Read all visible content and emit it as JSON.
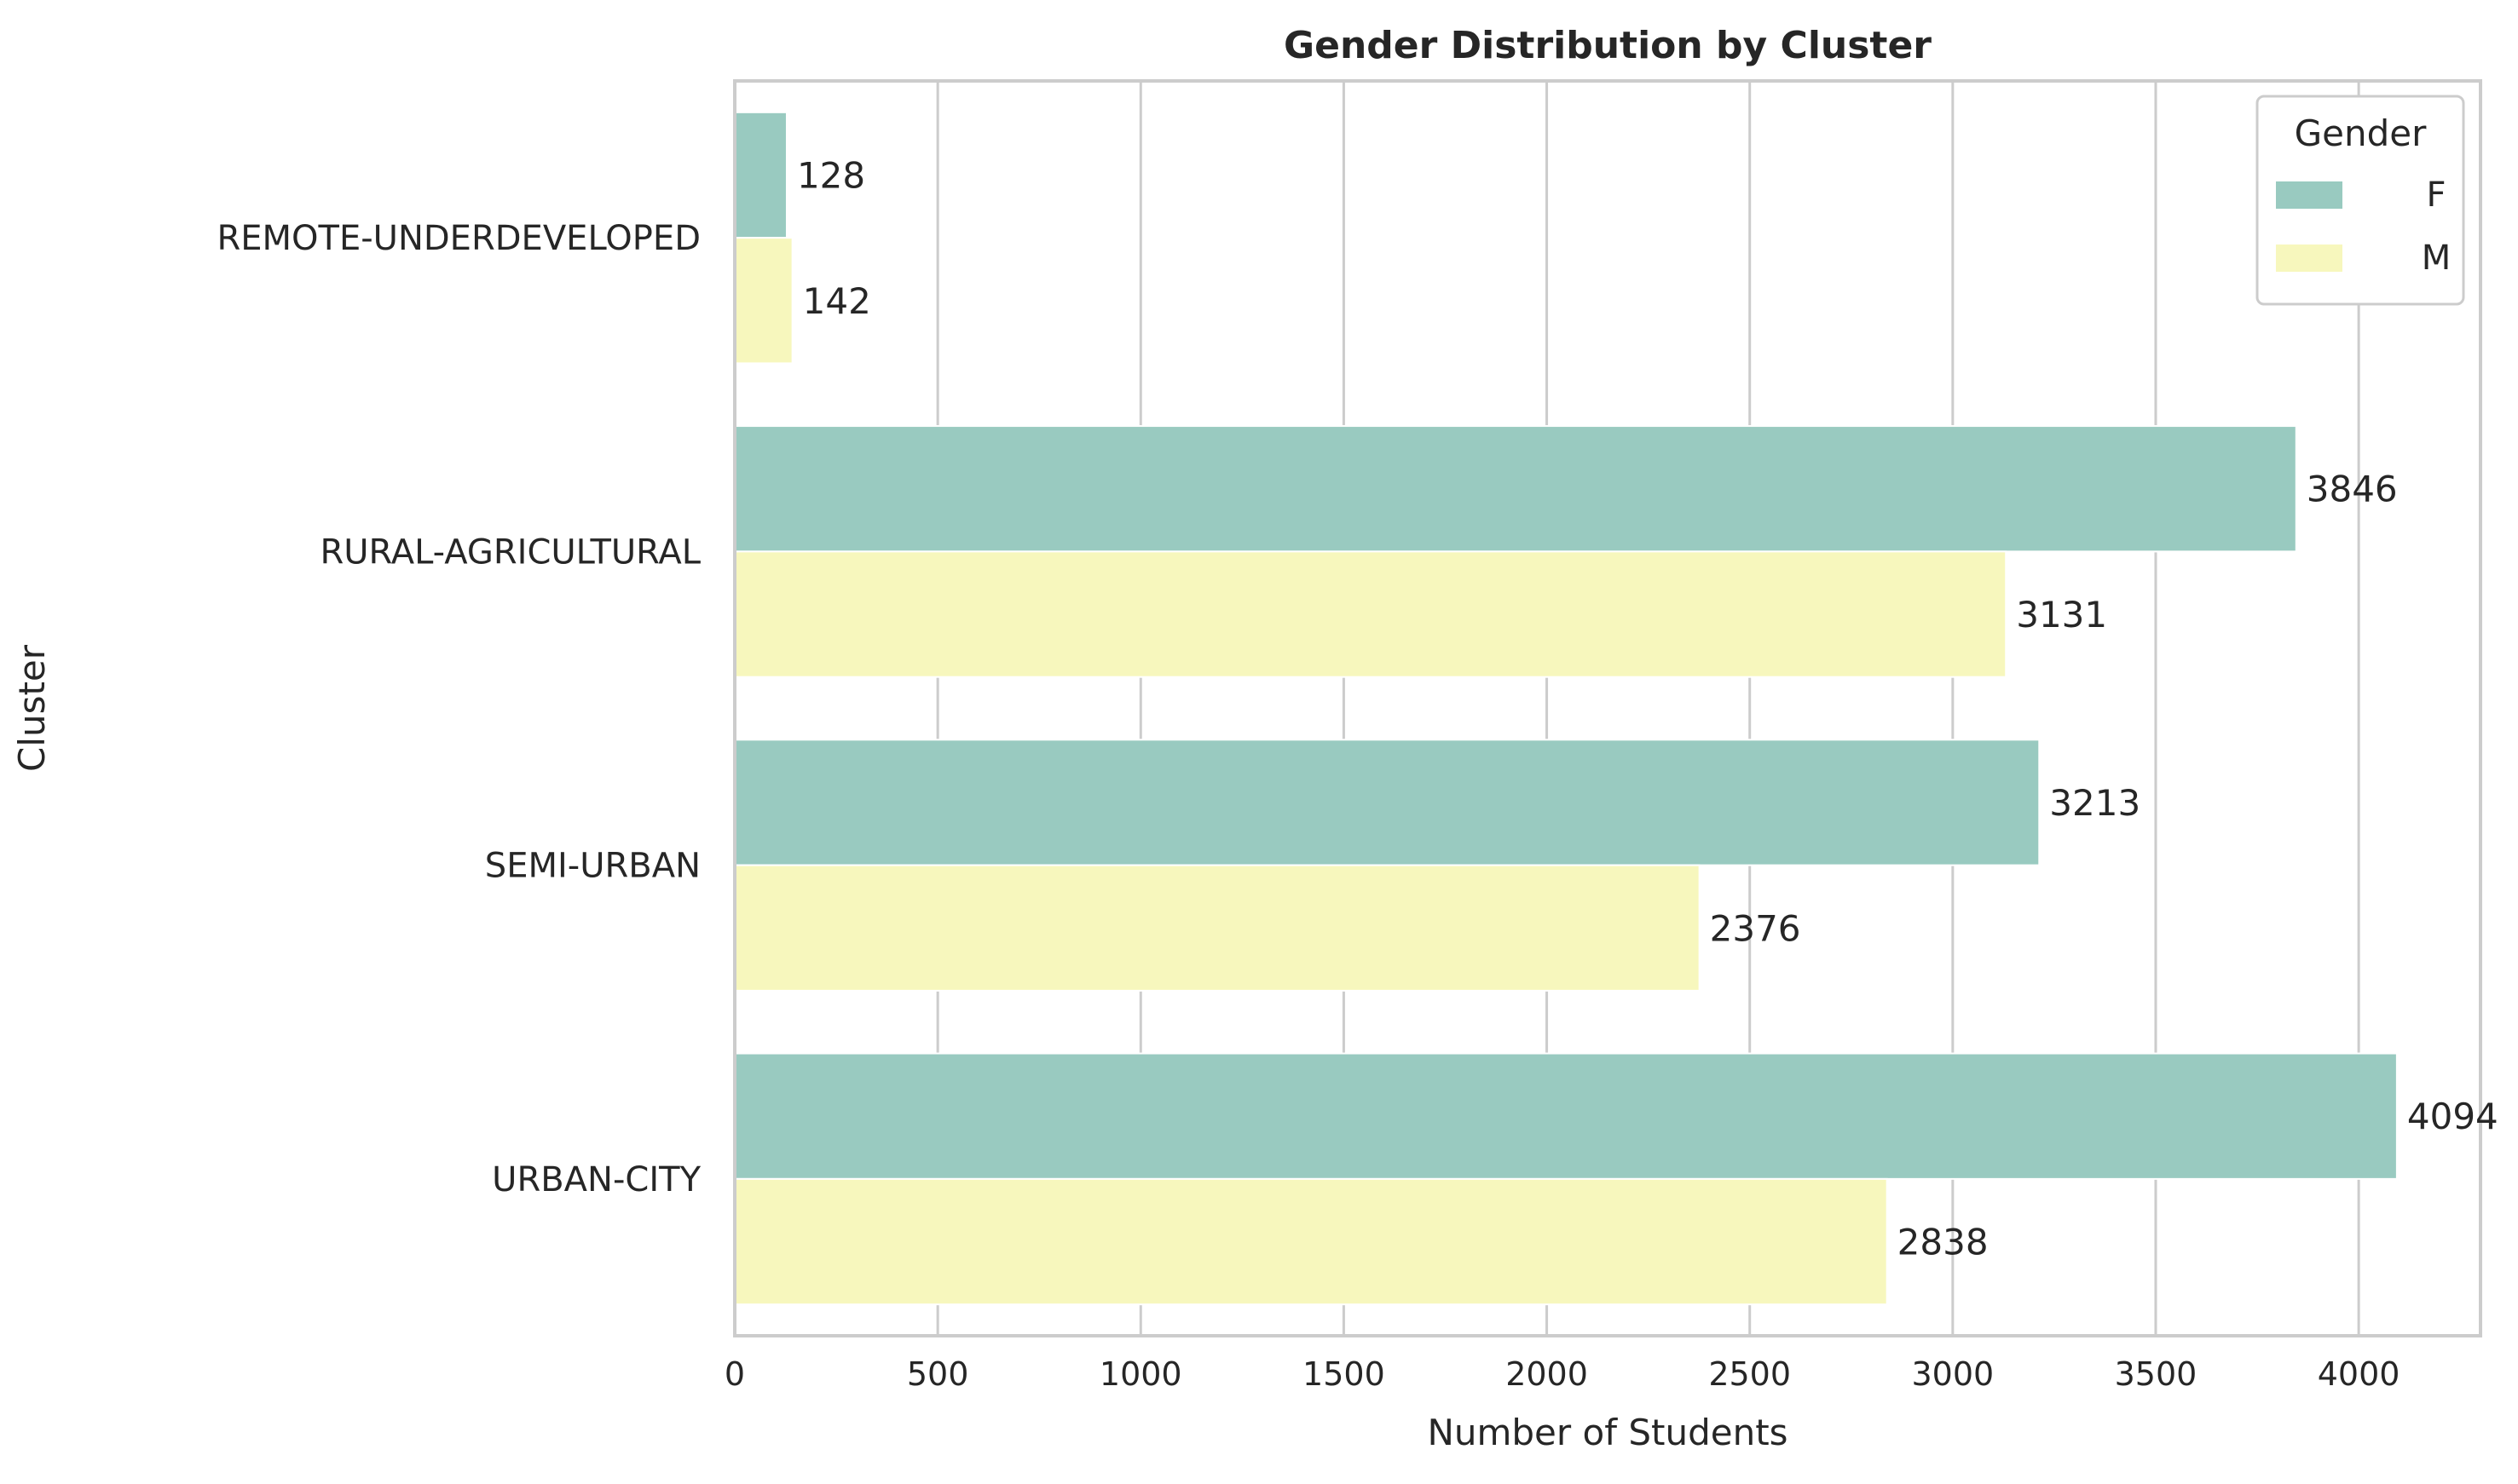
{
  "chart_data": {
    "type": "bar",
    "orientation": "horizontal",
    "title": "Gender Distribution by Cluster",
    "xlabel": "Number of Students",
    "ylabel": "Cluster",
    "categories": [
      "REMOTE-UNDERDEVELOPED",
      "RURAL-AGRICULTURAL",
      "SEMI-URBAN",
      "URBAN-CITY"
    ],
    "series": [
      {
        "name": "F",
        "color": "#99cac0",
        "values": [
          128,
          3846,
          3213,
          4094
        ]
      },
      {
        "name": "M",
        "color": "#f7f7bd",
        "values": [
          142,
          3131,
          2376,
          2838
        ]
      }
    ],
    "xlim": [
      0,
      4300
    ],
    "xticks": [
      0,
      500,
      1000,
      1500,
      2000,
      2500,
      3000,
      3500,
      4000
    ],
    "grid": "vertical",
    "legend": {
      "title": "Gender",
      "position": "top-right"
    }
  }
}
